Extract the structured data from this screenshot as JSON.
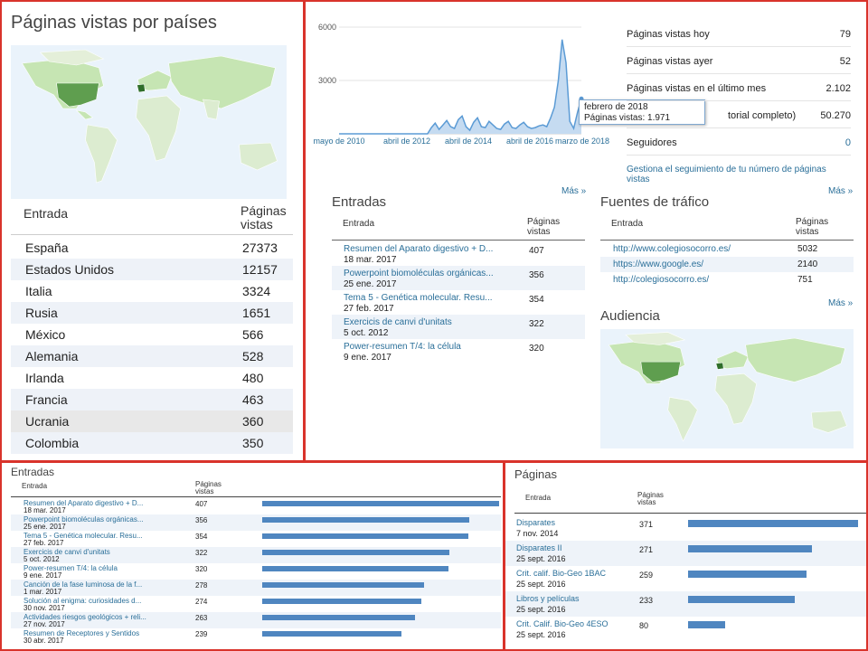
{
  "countries": {
    "title": "Páginas vistas por países",
    "col_entry": "Entrada",
    "col_views": "Páginas vistas",
    "rows": [
      {
        "name": "España",
        "value": "27373"
      },
      {
        "name": "Estados Unidos",
        "value": "12157"
      },
      {
        "name": "Italia",
        "value": "3324"
      },
      {
        "name": "Rusia",
        "value": "1651"
      },
      {
        "name": "México",
        "value": "566"
      },
      {
        "name": "Alemania",
        "value": "528"
      },
      {
        "name": "Irlanda",
        "value": "480"
      },
      {
        "name": "Francia",
        "value": "463"
      },
      {
        "name": "Ucrania",
        "value": "360"
      },
      {
        "name": "Colombia",
        "value": "350"
      }
    ]
  },
  "chart_data": {
    "type": "area",
    "yticks": [
      "6000",
      "3000"
    ],
    "xticks": [
      "mayo de 2010",
      "abril de 2012",
      "abril de 2014",
      "abril de 2016",
      "marzo de 2018"
    ],
    "ylim": [
      0,
      6000
    ],
    "series": [
      {
        "values": [
          0,
          0,
          0,
          0,
          0,
          0,
          0,
          0,
          0,
          0,
          0,
          0,
          0,
          0,
          0,
          0,
          0,
          0,
          0,
          0,
          0,
          0,
          0,
          0,
          350,
          600,
          250,
          500,
          750,
          400,
          300,
          800,
          1000,
          400,
          200,
          650,
          900,
          400,
          350,
          700,
          500,
          300,
          250,
          550,
          700,
          350,
          300,
          500,
          650,
          400,
          300,
          350,
          450,
          500,
          400,
          900,
          1500,
          3000,
          5300,
          4000,
          700,
          300,
          1200,
          1971
        ]
      }
    ],
    "tooltip": {
      "line1": "febrero de 2018",
      "line2": "Páginas vistas: 1.971"
    },
    "color": "#5b9bd5"
  },
  "stats": {
    "rows": [
      {
        "label": "Páginas vistas hoy",
        "value": "79"
      },
      {
        "label": "Páginas vistas ayer",
        "value": "52"
      },
      {
        "label": "Páginas vistas en el último mes",
        "value": "2.102"
      },
      {
        "label": "torial completo)",
        "value": "50.270"
      },
      {
        "label": "Seguidores",
        "value": "0"
      }
    ],
    "link": "Gestiona el seguimiento de tu número de páginas vistas"
  },
  "entradas": {
    "title": "Entradas",
    "mas": "Más »",
    "col_entry": "Entrada",
    "col_views": "Páginas vistas",
    "rows": [
      {
        "title": "Resumen del Aparato digestivo + D...",
        "date": "18 mar. 2017",
        "value": "407"
      },
      {
        "title": "Powerpoint biomoléculas orgánicas...",
        "date": "25 ene. 2017",
        "value": "356"
      },
      {
        "title": "Tema 5 - Genética molecular. Resu...",
        "date": "27 feb. 2017",
        "value": "354"
      },
      {
        "title": "Exercicis de canvi d'unitats",
        "date": "5 oct. 2012",
        "value": "322"
      },
      {
        "title": "Power-resumen T/4: la célula",
        "date": "9 ene. 2017",
        "value": "320"
      }
    ]
  },
  "fuentes": {
    "title": "Fuentes de tráfico",
    "mas": "Más »",
    "col_entry": "Entrada",
    "col_views": "Páginas vistas",
    "rows": [
      {
        "title": "http://www.colegiosocorro.es/",
        "value": "5032"
      },
      {
        "title": "https://www.google.es/",
        "value": "2140"
      },
      {
        "title": "http://colegiosocorro.es/",
        "value": "751"
      }
    ]
  },
  "audiencia": {
    "title": "Audiencia",
    "mas": "Más »"
  },
  "entradas_bottom": {
    "title": "Entradas",
    "col_entry": "Entrada",
    "col_views": "Páginas vistas",
    "max": 407,
    "rows": [
      {
        "title": "Resumen del Aparato digestivo + D...",
        "date": "18 mar. 2017",
        "value": 407
      },
      {
        "title": "Powerpoint biomoléculas orgánicas...",
        "date": "25 ene. 2017",
        "value": 356
      },
      {
        "title": "Tema 5 - Genética molecular. Resu...",
        "date": "27 feb. 2017",
        "value": 354
      },
      {
        "title": "Exercicis de canvi d'unitats",
        "date": "5 oct. 2012",
        "value": 322
      },
      {
        "title": "Power-resumen T/4: la célula",
        "date": "9 ene. 2017",
        "value": 320
      },
      {
        "title": "Canción de la fase luminosa de la f...",
        "date": "1 mar. 2017",
        "value": 278
      },
      {
        "title": "Solución al enigma: curiosidades d...",
        "date": "30 nov. 2017",
        "value": 274
      },
      {
        "title": "Actividades riesgos geológicos + reli...",
        "date": "27 nov. 2017",
        "value": 263
      },
      {
        "title": "Resumen de Receptores y Sentidos",
        "date": "30 abr. 2017",
        "value": 239
      }
    ]
  },
  "paginas": {
    "title": "Páginas",
    "col_entry": "Entrada",
    "col_views": "Páginas vistas",
    "max": 371,
    "rows": [
      {
        "title": "Disparates",
        "date": "7 nov. 2014",
        "value": 371
      },
      {
        "title": "Disparates II",
        "date": "25 sept. 2016",
        "value": 271
      },
      {
        "title": "Crit. calif. Bio-Geo 1BAC",
        "date": "25 sept. 2016",
        "value": 259
      },
      {
        "title": "Libros y películas",
        "date": "25 sept. 2016",
        "value": 233
      },
      {
        "title": "Crit. Calif. Bio-Geo 4ESO",
        "date": "25 sept. 2016",
        "value": 80
      }
    ]
  }
}
